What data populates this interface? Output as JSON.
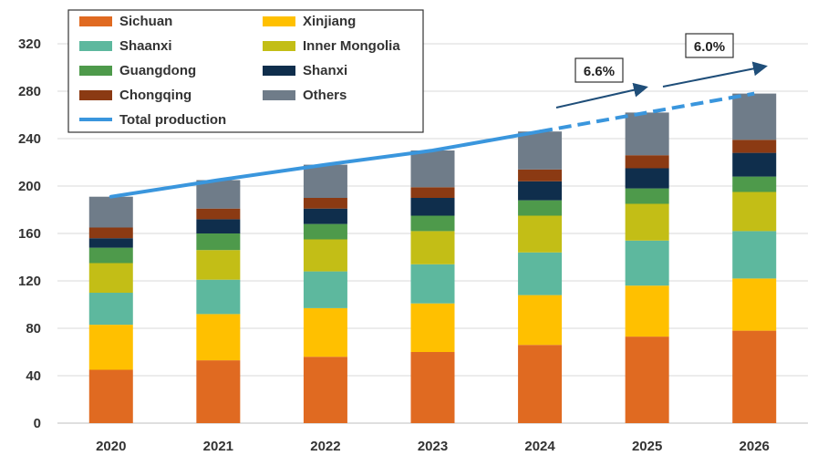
{
  "chart_data": {
    "type": "bar",
    "stacked": true,
    "title": "",
    "xlabel": "",
    "ylabel": "",
    "ylim": [
      0,
      320
    ],
    "yticks": [
      0,
      40,
      80,
      120,
      160,
      200,
      240,
      280,
      320
    ],
    "categories": [
      "2020",
      "2021",
      "2022",
      "2023",
      "2024",
      "2025",
      "2026"
    ],
    "series": [
      {
        "name": "Sichuan",
        "color": "#E06A21",
        "values": [
          45,
          53,
          56,
          60,
          66,
          73,
          78
        ]
      },
      {
        "name": "Xinjiang",
        "color": "#FFC000",
        "values": [
          38,
          39,
          41,
          41,
          42,
          43,
          44
        ]
      },
      {
        "name": "Shaanxi",
        "color": "#5DB89E",
        "values": [
          27,
          29,
          31,
          33,
          36,
          38,
          40
        ]
      },
      {
        "name": "Inner Mongolia",
        "color": "#C3BE16",
        "values": [
          25,
          25,
          27,
          28,
          31,
          31,
          33
        ]
      },
      {
        "name": "Guangdong",
        "color": "#4E9A4B",
        "values": [
          13,
          14,
          13,
          13,
          13,
          13,
          13
        ]
      },
      {
        "name": "Shanxi",
        "color": "#0F2E4C",
        "values": [
          8,
          12,
          13,
          15,
          16,
          17,
          20
        ]
      },
      {
        "name": "Chongqing",
        "color": "#8B3A13",
        "values": [
          9,
          9,
          9,
          9,
          10,
          11,
          11
        ]
      },
      {
        "name": "Others",
        "color": "#6F7C89",
        "values": [
          26,
          24,
          28,
          31,
          32,
          36,
          39
        ]
      }
    ],
    "line": {
      "name": "Total production",
      "color": "#3A96DD",
      "values": [
        191,
        205,
        218,
        230,
        246,
        262,
        278
      ],
      "dashed_from_index": 4
    },
    "annotations": [
      {
        "text": "6.6%",
        "category_from": "2024",
        "category_to": "2025"
      },
      {
        "text": "6.0%",
        "category_from": "2025",
        "category_to": "2026"
      }
    ],
    "legend": {
      "placement": "top-left",
      "entries": [
        "Sichuan",
        "Xinjiang",
        "Shaanxi",
        "Inner Mongolia",
        "Guangdong",
        "Shanxi",
        "Chongqing",
        "Others",
        "Total production"
      ]
    },
    "grid": true
  }
}
